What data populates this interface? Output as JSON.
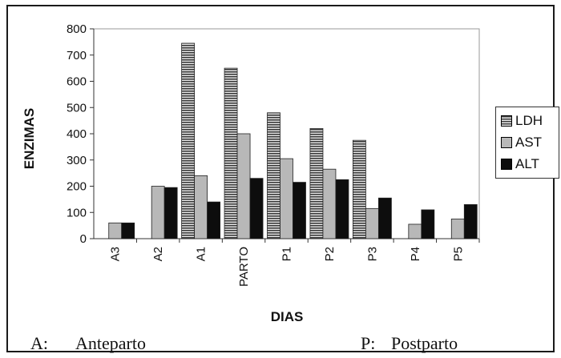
{
  "chart_data": {
    "type": "bar",
    "categories": [
      "A3",
      "A2",
      "A1",
      "PARTO",
      "P1",
      "P2",
      "P3",
      "P4",
      "P5"
    ],
    "series": [
      {
        "name": "LDH",
        "values": [
          0,
          0,
          745,
          650,
          480,
          420,
          375,
          0,
          0
        ],
        "color": "#555555",
        "pattern": "horizontal-stripes"
      },
      {
        "name": "AST",
        "values": [
          60,
          200,
          240,
          400,
          305,
          265,
          115,
          55,
          75
        ],
        "color": "#b8b8b8",
        "pattern": "solid"
      },
      {
        "name": "ALT",
        "values": [
          60,
          195,
          140,
          230,
          215,
          225,
          155,
          110,
          130
        ],
        "color": "#0d0d0d",
        "pattern": "solid"
      }
    ],
    "ylim": [
      0,
      800
    ],
    "yticks": [
      "0",
      "100",
      "200",
      "300",
      "400",
      "500",
      "600",
      "700",
      "800"
    ],
    "ylabel": "ENZIMAS",
    "xlabel": "DIAS",
    "legend_position": "right"
  },
  "footnotes": {
    "left_key": "A:",
    "left_text": "Anteparto",
    "right_key": "P:",
    "right_text": "Postparto"
  }
}
